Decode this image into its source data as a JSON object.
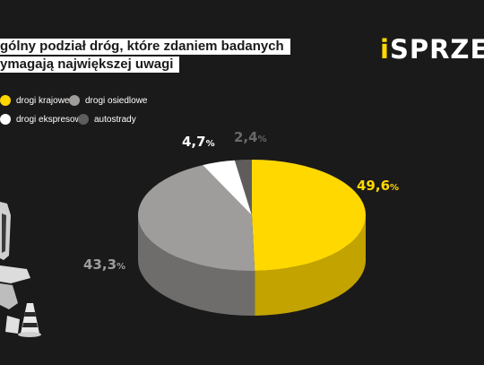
{
  "header": {
    "title_line1": "gólny podział dróg, które zdaniem badanych",
    "title_line2": "ymagają największej uwagi",
    "logo_i": "i",
    "logo_rest": "SPRZET"
  },
  "colors": {
    "background": "#1b1a1a",
    "accent": "#ffd800"
  },
  "icons": {
    "left_illustration": "road-worker-with-traffic-cone-icon"
  },
  "chart_data": {
    "type": "pie",
    "style": "3d",
    "legend_position": "top-left",
    "series": [
      {
        "name": "drogi krajowe",
        "value": 49.6,
        "label": "49,6",
        "unit": "%",
        "color": "#ffd800",
        "side_color": "#c2a300",
        "label_color": "#ffd800"
      },
      {
        "name": "drogi osiedlowe",
        "value": 43.3,
        "label": "43,3",
        "unit": "%",
        "color": "#9e9d9b",
        "side_color": "#6e6d6b",
        "label_color": "#9e9d9b"
      },
      {
        "name": "drogi ekspresowe",
        "value": 4.7,
        "label": "4,7",
        "unit": "%",
        "color": "#ffffff",
        "side_color": "#cccccc",
        "label_color": "#ffffff"
      },
      {
        "name": "autostrady",
        "value": 2.4,
        "label": "2,4",
        "unit": "%",
        "color": "#5e5d5b",
        "side_color": "#3e3d3b",
        "label_color": "#6a6968"
      }
    ]
  }
}
